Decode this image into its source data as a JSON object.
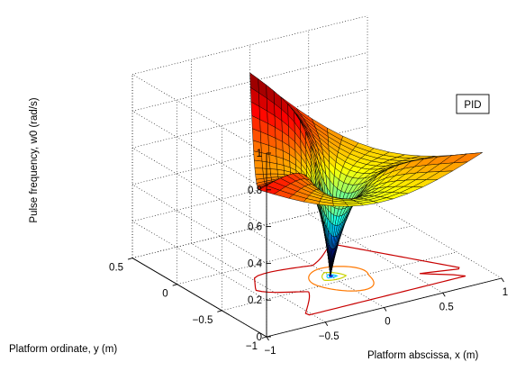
{
  "chart_data": {
    "type": "surface3d",
    "zlabel": "Pulse frequency, w0 (rad/s)",
    "xlabel": "Platform abscissa, x (m)",
    "ylabel": "Platform ordinate, y (m)",
    "legend": "PID",
    "legend_position": "top-right",
    "grid": true,
    "xlim": [
      -1,
      1
    ],
    "ylim": [
      -1,
      0.5
    ],
    "zlim": [
      0,
      1
    ],
    "x_ticks": [
      {
        "value": -1,
        "label": "−1"
      },
      {
        "value": -0.5,
        "label": "−0.5"
      },
      {
        "value": 0,
        "label": "0"
      },
      {
        "value": 0.5,
        "label": "0.5"
      },
      {
        "value": 1,
        "label": "1"
      }
    ],
    "y_ticks": [
      {
        "value": -1,
        "label": "−1"
      },
      {
        "value": -0.5,
        "label": "−0.5"
      },
      {
        "value": 0,
        "label": "0"
      },
      {
        "value": 0.5,
        "label": "0.5"
      }
    ],
    "z_ticks": [
      {
        "value": 0,
        "label": "0"
      },
      {
        "value": 0.2,
        "label": "0.2"
      },
      {
        "value": 0.4,
        "label": "0.4"
      },
      {
        "value": 0.6,
        "label": "0.6"
      },
      {
        "value": 0.8,
        "label": "0.8"
      },
      {
        "value": 1,
        "label": "1"
      }
    ],
    "surface": {
      "domain_vertices": [
        [
          -0.95,
          -0.85
        ],
        [
          0.95,
          -0.85
        ],
        [
          0.0,
          0.5
        ]
      ],
      "minimum": {
        "x": 0.0,
        "y": -0.4,
        "z": 0.0
      },
      "corner_values_z": [
        0.75,
        0.65,
        0.85
      ],
      "rim_sag_z": 0.18,
      "colormap": "jet"
    },
    "contour_levels_z": [
      0.05,
      0.15,
      0.3,
      0.5,
      0.62
    ]
  }
}
